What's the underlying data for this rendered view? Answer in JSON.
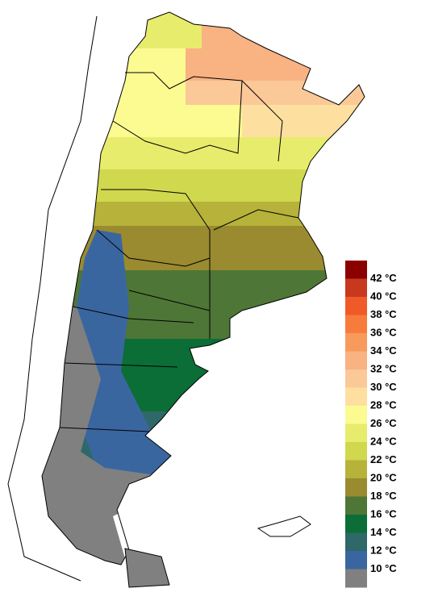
{
  "legend": {
    "labels": [
      "42 °C",
      "40 °C",
      "38 °C",
      "36 °C",
      "34 °C",
      "32 °C",
      "30 °C",
      "28 °C",
      "26 °C",
      "24 °C",
      "22 °C",
      "20 °C",
      "18 °C",
      "16 °C",
      "14 °C",
      "12 °C",
      "10 °C"
    ],
    "colors": [
      "#8b0000",
      "#c8381e",
      "#f05a28",
      "#f77c3c",
      "#f79a5c",
      "#f9b282",
      "#fbc898",
      "#fde0a0",
      "#fbfb92",
      "#e8ec6c",
      "#d0d84e",
      "#b6b23a",
      "#9a8a30",
      "#4e7636",
      "#0a6e36",
      "#2e6868",
      "#3a66a0",
      "#808080"
    ]
  }
}
